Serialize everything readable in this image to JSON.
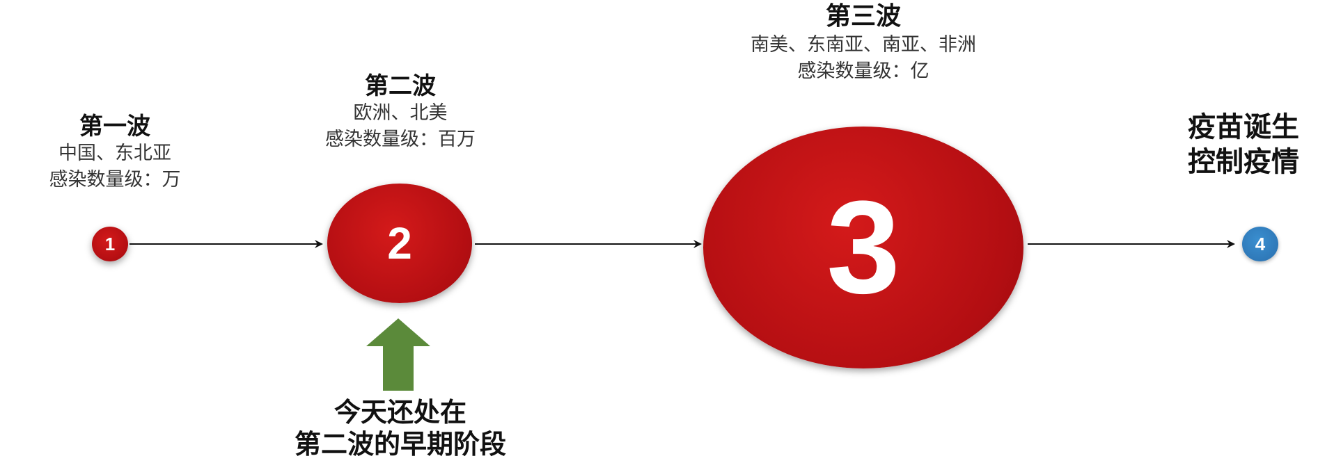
{
  "waves": [
    {
      "number": "1",
      "title": "第一波",
      "region": "中国、东北亚",
      "scale": "感染数量级：万"
    },
    {
      "number": "2",
      "title": "第二波",
      "region": "欧洲、北美",
      "scale": "感染数量级：百万"
    },
    {
      "number": "3",
      "title": "第三波",
      "region": "南美、东南亚、南亚、非洲",
      "scale": "感染数量级：亿"
    }
  ],
  "final": {
    "number": "4",
    "line1": "疫苗诞生",
    "line2": "控制疫情"
  },
  "marker": {
    "line1": "今天还处在",
    "line2": "第二波的早期阶段"
  },
  "colors": {
    "red": "#b30e12",
    "blue": "#2a6fae",
    "green_arrow": "#5b8a3a"
  },
  "icons": {
    "marker": "up-arrow-icon"
  }
}
